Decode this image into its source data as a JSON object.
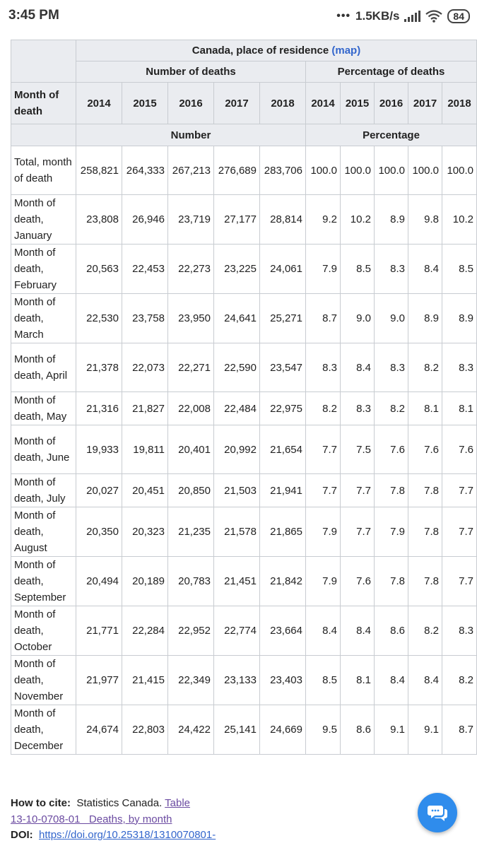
{
  "status_bar": {
    "time": "3:45 PM",
    "network_speed": "1.5KB/s",
    "battery": "84",
    "icons": [
      "dots-icon",
      "signal-icon",
      "wifi-icon",
      "battery-icon"
    ]
  },
  "table": {
    "geo_header": "Canada, place of residence",
    "map_link": "(map)",
    "group_number": "Number of deaths",
    "group_percentage": "Percentage of deaths",
    "row_label_header": "Month of death",
    "years": [
      "2014",
      "2015",
      "2016",
      "2017",
      "2018"
    ],
    "unit_number": "Number",
    "unit_percentage": "Percentage",
    "rows": [
      {
        "label": "Total, month of death",
        "numbers": [
          "258,821",
          "264,333",
          "267,213",
          "276,689",
          "283,706"
        ],
        "percentages": [
          "100.0",
          "100.0",
          "100.0",
          "100.0",
          "100.0"
        ]
      },
      {
        "label": "Month of death, January",
        "numbers": [
          "23,808",
          "26,946",
          "23,719",
          "27,177",
          "28,814"
        ],
        "percentages": [
          "9.2",
          "10.2",
          "8.9",
          "9.8",
          "10.2"
        ]
      },
      {
        "label": "Month of death, February",
        "numbers": [
          "20,563",
          "22,453",
          "22,273",
          "23,225",
          "24,061"
        ],
        "percentages": [
          "7.9",
          "8.5",
          "8.3",
          "8.4",
          "8.5"
        ]
      },
      {
        "label": "Month of death, March",
        "numbers": [
          "22,530",
          "23,758",
          "23,950",
          "24,641",
          "25,271"
        ],
        "percentages": [
          "8.7",
          "9.0",
          "9.0",
          "8.9",
          "8.9"
        ]
      },
      {
        "label": "Month of death, April",
        "numbers": [
          "21,378",
          "22,073",
          "22,271",
          "22,590",
          "23,547"
        ],
        "percentages": [
          "8.3",
          "8.4",
          "8.3",
          "8.2",
          "8.3"
        ]
      },
      {
        "label": "Month of death, May",
        "numbers": [
          "21,316",
          "21,827",
          "22,008",
          "22,484",
          "22,975"
        ],
        "percentages": [
          "8.2",
          "8.3",
          "8.2",
          "8.1",
          "8.1"
        ]
      },
      {
        "label": "Month of death, June",
        "numbers": [
          "19,933",
          "19,811",
          "20,401",
          "20,992",
          "21,654"
        ],
        "percentages": [
          "7.7",
          "7.5",
          "7.6",
          "7.6",
          "7.6"
        ]
      },
      {
        "label": "Month of death, July",
        "numbers": [
          "20,027",
          "20,451",
          "20,850",
          "21,503",
          "21,941"
        ],
        "percentages": [
          "7.7",
          "7.7",
          "7.8",
          "7.8",
          "7.7"
        ]
      },
      {
        "label": "Month of death, August",
        "numbers": [
          "20,350",
          "20,323",
          "21,235",
          "21,578",
          "21,865"
        ],
        "percentages": [
          "7.9",
          "7.7",
          "7.9",
          "7.8",
          "7.7"
        ]
      },
      {
        "label": "Month of death, September",
        "numbers": [
          "20,494",
          "20,189",
          "20,783",
          "21,451",
          "21,842"
        ],
        "percentages": [
          "7.9",
          "7.6",
          "7.8",
          "7.8",
          "7.7"
        ]
      },
      {
        "label": "Month of death, October",
        "numbers": [
          "21,771",
          "22,284",
          "22,952",
          "22,774",
          "23,664"
        ],
        "percentages": [
          "8.4",
          "8.4",
          "8.6",
          "8.2",
          "8.3"
        ]
      },
      {
        "label": "Month of death, November",
        "numbers": [
          "21,977",
          "21,415",
          "22,349",
          "23,133",
          "23,403"
        ],
        "percentages": [
          "8.5",
          "8.1",
          "8.4",
          "8.4",
          "8.2"
        ]
      },
      {
        "label": "Month of death, December",
        "numbers": [
          "24,674",
          "22,803",
          "24,422",
          "25,141",
          "24,669"
        ],
        "percentages": [
          "9.5",
          "8.6",
          "9.1",
          "9.1",
          "8.7"
        ]
      }
    ]
  },
  "footer": {
    "cite_label": "How to cite:",
    "cite_source": "Statistics Canada.",
    "cite_link_line1": "Table",
    "cite_link_line2": "13-10-0708-01   Deaths, by month",
    "doi_label": "DOI:",
    "doi_link": "https://doi.org/10.25318/1310070801-"
  },
  "chat_button": {
    "icon": "chat-bubbles-icon",
    "color": "#2f8cec"
  },
  "colors": {
    "header_bg": "#eaecf0",
    "border": "#c8ccd1",
    "link": "#3366cc",
    "visited_link": "#6b4ba1"
  }
}
